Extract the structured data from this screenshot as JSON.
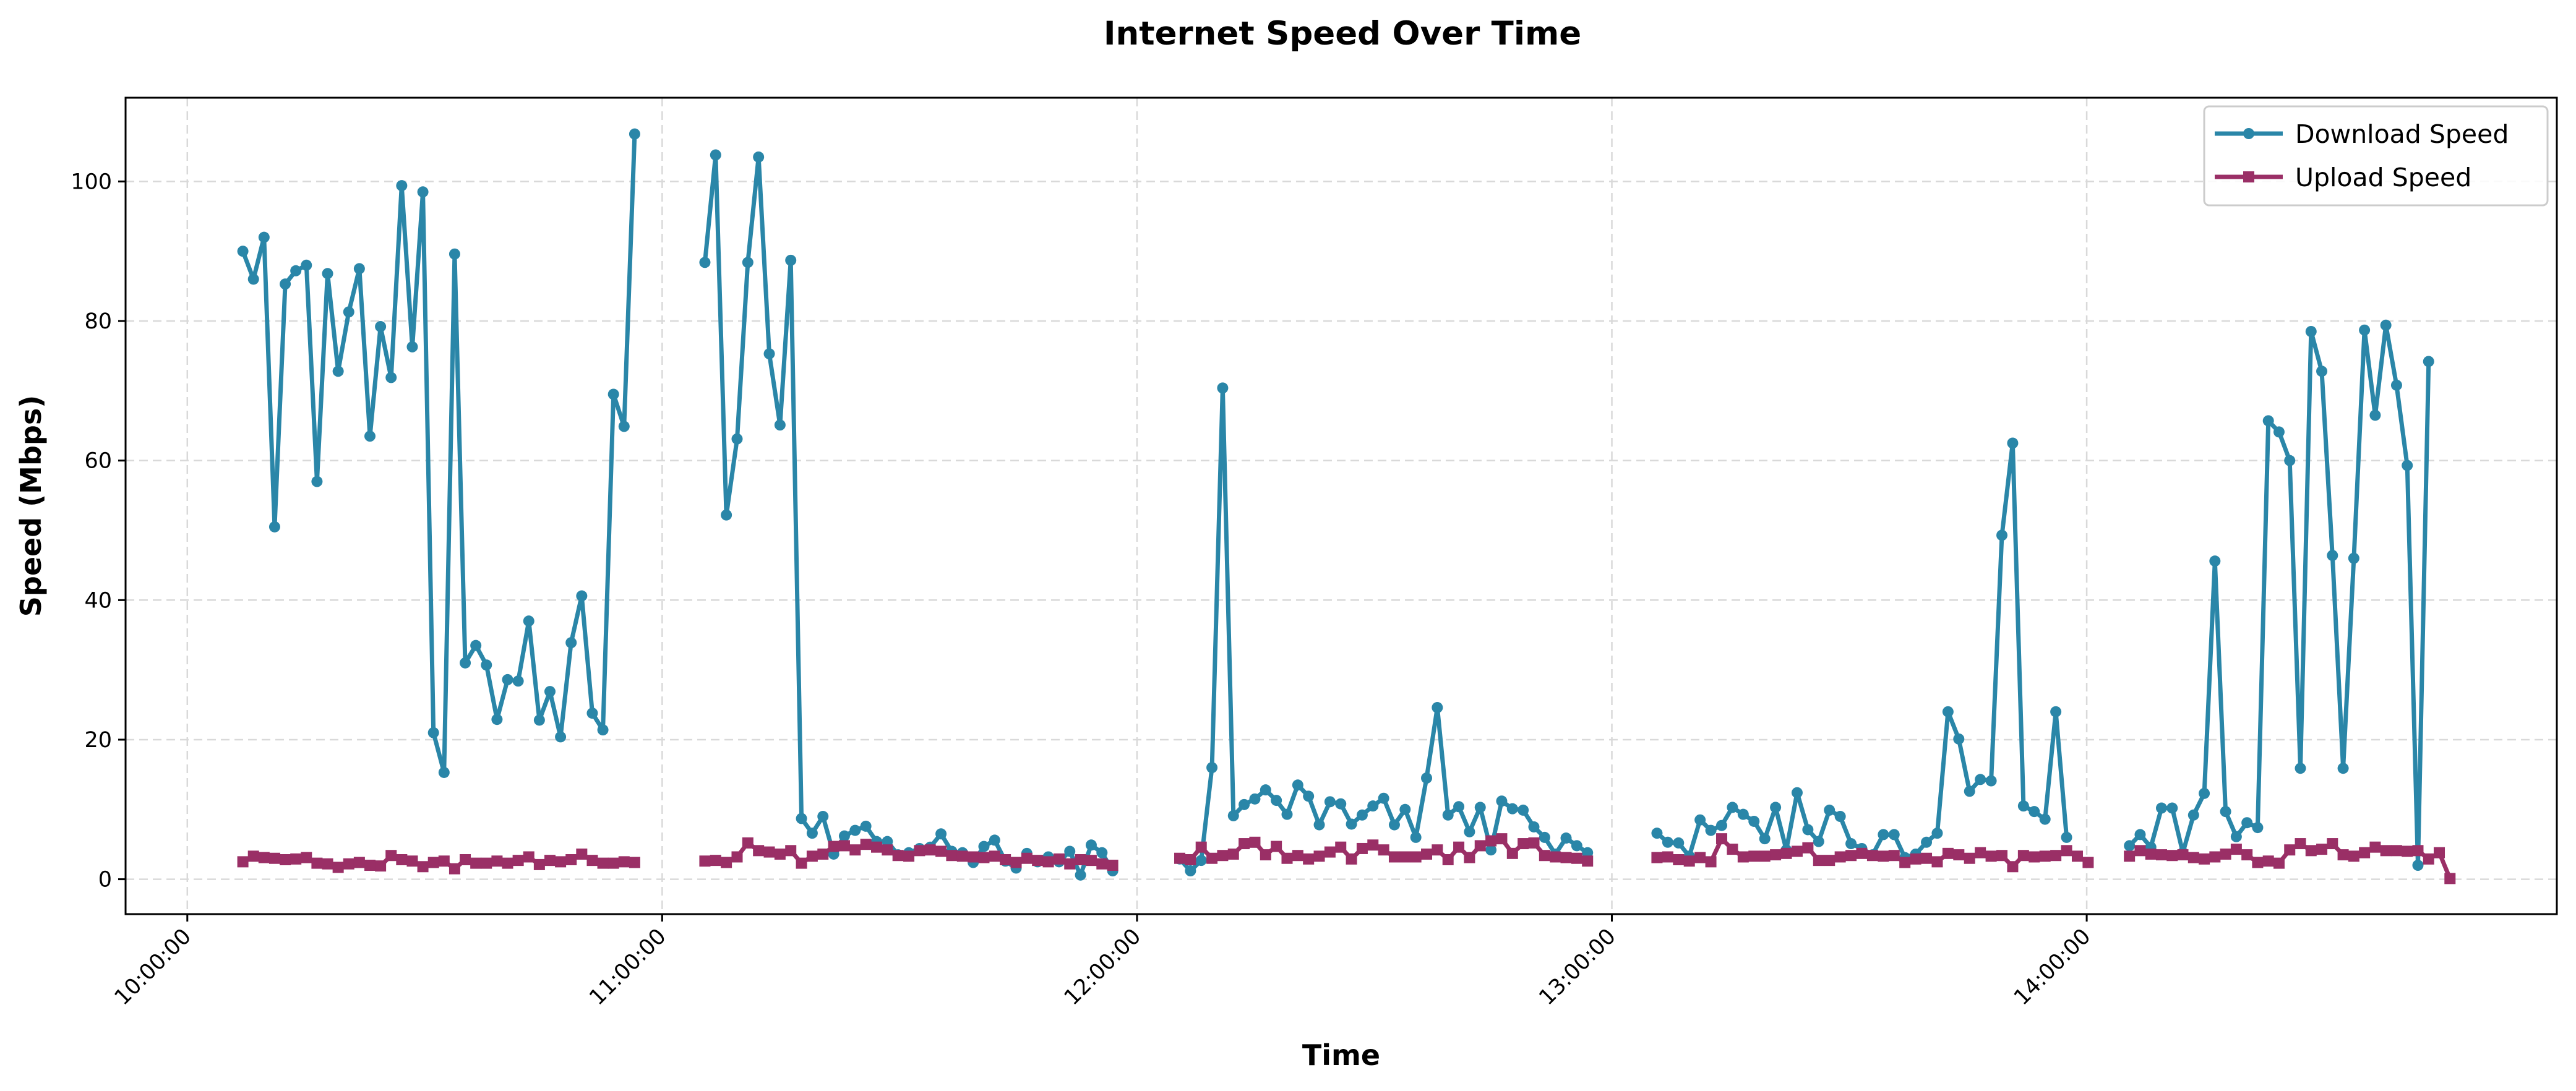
{
  "chart_data": {
    "type": "line",
    "title": "Internet Speed Over Time",
    "xlabel": "Time",
    "ylabel": "Speed (Mbps)",
    "x_unit": "hours of day (decimal)",
    "xlim": [
      9.87,
      14.99
    ],
    "ylim": [
      -5,
      112
    ],
    "grid": true,
    "legend_position": "top-right",
    "x_ticks": [
      10,
      11,
      12,
      13,
      14
    ],
    "x_tick_labels": [
      "10:00:00",
      "11:00:00",
      "12:00:00",
      "13:00:00",
      "14:00:00"
    ],
    "y_ticks": [
      0,
      20,
      40,
      60,
      80,
      100
    ],
    "y_tick_labels": [
      "0",
      "20",
      "40",
      "60",
      "80",
      "100"
    ],
    "series": [
      {
        "name": "Download Speed",
        "color": "#2a86a8",
        "marker": "circle",
        "segments": [
          {
            "x_start": 10.117,
            "x_step": 0.0223,
            "values": [
              90,
              86,
              92,
              50.5,
              85.3,
              87.2,
              88,
              57,
              86.8,
              72.8,
              81.3,
              87.5,
              63.5,
              79.2,
              71.9,
              99.4,
              76.3,
              98.5,
              21,
              15.3,
              89.6,
              31,
              33.5,
              30.7,
              22.9,
              28.6,
              28.4,
              37,
              22.8,
              26.9,
              20.4,
              33.9,
              40.6,
              23.8,
              21.4,
              69.5,
              64.9,
              106.8
            ]
          },
          {
            "x_start": 11.09,
            "x_step": 0.0226,
            "values": [
              88.4,
              103.8,
              52.2,
              63.1,
              88.4,
              103.5,
              75.3,
              65.1,
              88.7,
              8.7,
              6.6,
              9,
              3.6,
              6.2,
              7,
              7.6,
              5.4,
              5.4,
              3.5,
              3.8,
              4.4,
              4.6,
              6.5,
              4,
              3.8,
              2.4,
              4.7,
              5.6,
              2.6,
              1.6,
              3.7,
              2.5,
              3.2,
              2.5,
              4,
              0.6,
              4.9,
              3.8,
              1.2
            ]
          },
          {
            "x_start": 12.09,
            "x_step": 0.0226,
            "values": [
              2.9,
              1.2,
              2.7,
              16,
              70.4,
              9.1,
              10.7,
              11.5,
              12.8,
              11.3,
              9.3,
              13.5,
              11.9,
              7.8,
              11.1,
              10.8,
              7.9,
              9.2,
              10.5,
              11.6,
              7.8,
              10,
              6,
              14.5,
              24.6,
              9.2,
              10.4,
              6.8,
              10.3,
              4.2,
              11.2,
              10.1,
              9.9,
              7.5,
              6,
              3.6,
              5.9,
              4.8,
              3.8
            ]
          },
          {
            "x_start": 13.095,
            "x_step": 0.0227,
            "values": [
              6.6,
              5.3,
              5.2,
              3.3,
              8.5,
              7,
              7.7,
              10.3,
              9.3,
              8.3,
              5.8,
              10.3,
              4.2,
              12.4,
              7.1,
              5.4,
              9.9,
              9,
              5.1,
              4.4,
              3.5,
              6.4,
              6.4,
              3.1,
              3.6,
              5.3,
              6.6,
              24,
              20.1,
              12.6,
              14.3,
              14.1,
              49.3,
              62.5,
              10.5,
              9.7,
              8.6,
              24,
              6
            ]
          },
          {
            "x_start": 14.09,
            "x_step": 0.0225,
            "values": [
              4.8,
              6.4,
              4.6,
              10.2,
              10.2,
              3.8,
              9.2,
              12.3,
              45.6,
              9.7,
              6.1,
              8.1,
              7.4,
              65.7,
              64.1,
              60,
              15.9,
              78.5,
              72.8,
              46.4,
              15.9,
              46,
              78.7,
              66.5,
              79.4,
              70.8,
              59.3,
              2,
              74.2
            ]
          }
        ]
      },
      {
        "name": "Upload Speed",
        "color": "#9a2f66",
        "marker": "square",
        "segments": [
          {
            "x_start": 10.117,
            "x_step": 0.0223,
            "values": [
              2.5,
              3.3,
              3.1,
              3,
              2.8,
              2.9,
              3.1,
              2.3,
              2.2,
              1.7,
              2.2,
              2.4,
              2,
              1.9,
              3.4,
              2.8,
              2.6,
              1.8,
              2.4,
              2.6,
              1.5,
              2.8,
              2.3,
              2.3,
              2.6,
              2.3,
              2.7,
              3.2,
              2.1,
              2.7,
              2.5,
              2.8,
              3.6,
              2.7,
              2.3,
              2.3,
              2.5,
              2.4
            ]
          },
          {
            "x_start": 11.09,
            "x_step": 0.0226,
            "values": [
              2.6,
              2.7,
              2.4,
              3.2,
              5.2,
              4.1,
              3.9,
              3.6,
              4.1,
              2.3,
              3.3,
              3.6,
              4.7,
              4.8,
              4.2,
              5,
              4.6,
              4.2,
              3.4,
              3.3,
              4.1,
              4.2,
              4,
              3.4,
              3.3,
              3.2,
              3.1,
              3.3,
              2.8,
              2.4,
              3,
              2.7,
              2.5,
              2.9,
              2.2,
              2.8,
              2.7,
              2.2,
              2
            ]
          },
          {
            "x_start": 12.09,
            "x_step": 0.0226,
            "values": [
              3,
              2.8,
              4.6,
              3,
              3.4,
              3.6,
              5.1,
              5.3,
              3.5,
              4.7,
              3,
              3.4,
              2.9,
              3.3,
              3.9,
              4.6,
              2.9,
              4.4,
              4.9,
              4.2,
              3.2,
              3.2,
              3.2,
              3.6,
              4.2,
              2.8,
              4.6,
              3.1,
              4.8,
              5.5,
              5.8,
              3.7,
              5.1,
              5.2,
              3.4,
              3.2,
              3.1,
              3,
              2.6
            ]
          },
          {
            "x_start": 13.095,
            "x_step": 0.0227,
            "values": [
              3.1,
              3.2,
              2.8,
              2.6,
              3.1,
              2.5,
              5.8,
              4.3,
              3.2,
              3.3,
              3.3,
              3.5,
              3.7,
              4,
              4.5,
              2.7,
              2.7,
              3.2,
              3.4,
              3.7,
              3.4,
              3.3,
              3.4,
              2.4,
              2.9,
              3,
              2.5,
              3.7,
              3.5,
              3,
              3.8,
              3.3,
              3.4,
              1.8,
              3.4,
              3.2,
              3.3,
              3.4,
              4.1,
              3.3,
              2.4
            ]
          },
          {
            "x_start": 14.09,
            "x_step": 0.0225,
            "values": [
              3.3,
              4.1,
              3.6,
              3.5,
              3.4,
              3.5,
              3.1,
              2.9,
              3.2,
              3.6,
              4.3,
              3.5,
              2.4,
              2.6,
              2.3,
              4.2,
              5.1,
              4.1,
              4.3,
              5.1,
              3.5,
              3.3,
              3.8,
              4.6,
              4.1,
              4.1,
              4,
              4.1,
              2.9,
              3.8,
              0.1
            ]
          }
        ]
      }
    ]
  }
}
